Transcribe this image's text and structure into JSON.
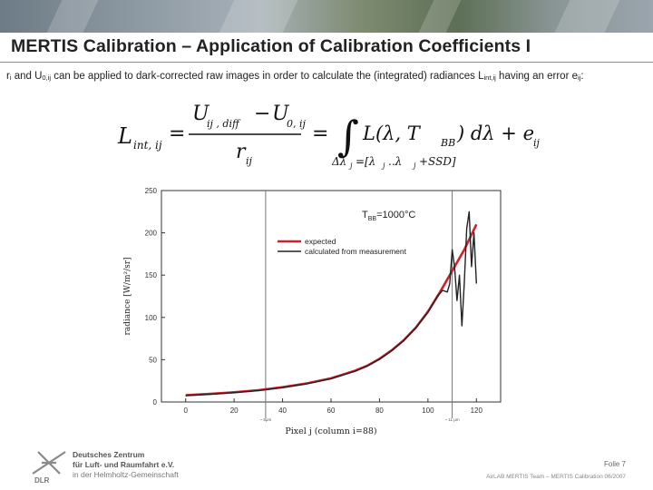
{
  "slide": {
    "title": "MERTIS Calibration – Application of Calibration Coefficients I",
    "intro": {
      "t1": "r",
      "t1_sub": "i",
      "t2": " and U",
      "t2_sub": "0,ij",
      "t3": " can be applied to dark-corrected raw images in order to calculate the (integrated) radiances L",
      "t3_sub": "int,ij",
      "t4": " having an error e",
      "t4_sub": "ij",
      "t5": ":"
    }
  },
  "formula": {
    "lhs": "L",
    "lhs_sub": "int, ij",
    "eq1": "=",
    "num_a": "U",
    "num_a_sub": "ij , diff",
    "num_minus": "−",
    "num_b": "U",
    "num_b_sub": "0, ij",
    "den": "r",
    "den_sub": "ij",
    "eq2": "=",
    "integral": "∫",
    "integrand": "L(λ, T",
    "integrand_sub": "BB",
    "integrand_end": ") dλ + e",
    "integrand_end_sub": "ij",
    "limits": "Δλ",
    "limits_sub": "j",
    "limits_rest": " =[λ",
    "limits_rest_sub": "j",
    "limits_rest2": " ..λ",
    "limits_rest2_sub": "j",
    "limits_end": " +SSD]"
  },
  "chart_data": {
    "type": "line",
    "xlabel": "Pixel j (column i=88)",
    "ylabel": "radiance [W/m²/sr]",
    "xlim": [
      -10,
      130
    ],
    "ylim": [
      0,
      250
    ],
    "x_ticks": [
      0,
      20,
      40,
      60,
      80,
      100,
      120
    ],
    "y_ticks": [
      0,
      50,
      100,
      150,
      200,
      250
    ],
    "annotation": "T",
    "annotation_sub": "BB",
    "annotation_rest": "=1000°C",
    "vlines": [
      {
        "x": 33,
        "label": "~ 8μm"
      },
      {
        "x": 110,
        "label": "~ 11 μm"
      }
    ],
    "series": [
      {
        "name": "expected",
        "color": "#d0202a",
        "x": [
          0,
          10,
          20,
          30,
          40,
          50,
          60,
          70,
          75,
          80,
          85,
          90,
          95,
          100,
          105,
          110,
          115,
          120
        ],
        "y": [
          8,
          9.5,
          11.5,
          14,
          17.5,
          22,
          28,
          37,
          43,
          51,
          61,
          73,
          88,
          107,
          130,
          155,
          180,
          210
        ]
      },
      {
        "name": "calculated from measurement",
        "color": "#222222",
        "x": [
          0,
          10,
          20,
          30,
          40,
          50,
          60,
          70,
          75,
          80,
          85,
          90,
          95,
          100,
          104,
          106,
          108,
          109,
          110,
          111,
          112,
          113,
          114,
          115,
          116,
          117,
          118,
          119,
          120
        ],
        "y": [
          7.5,
          9,
          11,
          13.5,
          17,
          21.5,
          27.5,
          36.5,
          42.5,
          50.5,
          60.5,
          72.5,
          87.5,
          106,
          125,
          132,
          130,
          140,
          180,
          160,
          120,
          150,
          90,
          140,
          205,
          225,
          160,
          200,
          140
        ]
      }
    ]
  },
  "footer": {
    "org_line1": "Deutsches Zentrum",
    "org_line2": "für Luft- und Raumfahrt e.V.",
    "org_line3": "in der Helmholtz-Gemeinschaft",
    "folie": "Folie 7",
    "footnote": "AirLAB MERTIS Team – MERTIS Calibration 06/2007"
  }
}
